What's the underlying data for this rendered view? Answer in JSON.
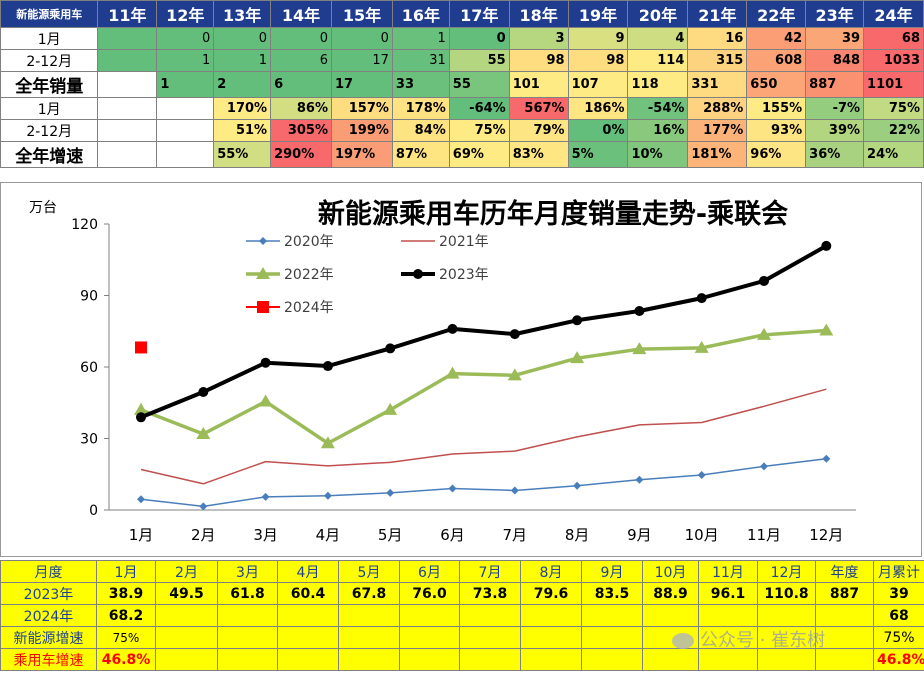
{
  "top_table": {
    "corner": "新能源乘用车",
    "years": [
      "11年",
      "12年",
      "13年",
      "14年",
      "15年",
      "16年",
      "17年",
      "18年",
      "19年",
      "20年",
      "21年",
      "22年",
      "23年",
      "24年"
    ],
    "rows": [
      {
        "label": "1月",
        "cells": [
          "",
          "0",
          "0",
          "0",
          "0",
          "1",
          "0",
          "3",
          "9",
          "4",
          "16",
          "42",
          "39",
          "68"
        ]
      },
      {
        "label": "2-12月",
        "cells": [
          "",
          "1",
          "1",
          "6",
          "17",
          "31",
          "55",
          "98",
          "98",
          "114",
          "315",
          "608",
          "848",
          "1033"
        ]
      },
      {
        "label": "全年销量",
        "cells": [
          "",
          "1",
          "2",
          "6",
          "17",
          "33",
          "55",
          "101",
          "107",
          "118",
          "331",
          "650",
          "887",
          "1101"
        ]
      },
      {
        "label": "1月",
        "cells": [
          "",
          "",
          "170%",
          "86%",
          "157%",
          "178%",
          "-64%",
          "567%",
          "186%",
          "-54%",
          "288%",
          "155%",
          "-7%",
          "75%"
        ]
      },
      {
        "label": "2-12月",
        "cells": [
          "",
          "",
          "51%",
          "305%",
          "199%",
          "84%",
          "75%",
          "79%",
          "0%",
          "16%",
          "177%",
          "93%",
          "39%",
          "22%"
        ]
      },
      {
        "label": "全年增速",
        "cells": [
          "",
          "",
          "55%",
          "290%",
          "197%",
          "87%",
          "69%",
          "83%",
          "5%",
          "10%",
          "181%",
          "96%",
          "36%",
          "24%"
        ]
      }
    ],
    "colors": [
      [
        "#63be7b",
        "#63be7b",
        "#63be7b",
        "#63be7b",
        "#63be7b",
        "#69c07c",
        "#63be7b",
        "#b6d680",
        "#d8e082",
        "#cfdd82",
        "#fedb80",
        "#fb9d75",
        "#fba677",
        "#f8696b"
      ],
      [
        "#63be7b",
        "#63be7b",
        "#63be7b",
        "#63be7b",
        "#63be7b",
        "#66bf7c",
        "#b5d680",
        "#fedd81",
        "#fedd81",
        "#ffeb84",
        "#fed380",
        "#fba276",
        "#f98470",
        "#f8696b"
      ],
      [
        "#ffffff",
        "#63be7b",
        "#63be7b",
        "#63be7b",
        "#63be7b",
        "#6bc17c",
        "#7ac57d",
        "#ffeb84",
        "#ffeb84",
        "#ffeb84",
        "#fedb81",
        "#fca576",
        "#fa9272",
        "#f8696b"
      ],
      [
        "#ffffff",
        "#ffffff",
        "#ffeb84",
        "#d3de82",
        "#fedd81",
        "#ffe383",
        "#63be7b",
        "#f8696b",
        "#ffe683",
        "#70c27c",
        "#fed280",
        "#feeb84",
        "#94cd7e",
        "#c2da81"
      ],
      [
        "#ffffff",
        "#ffffff",
        "#ffeb84",
        "#f8696b",
        "#fa9d75",
        "#fee382",
        "#ffeb84",
        "#fee583",
        "#63be7b",
        "#88c97e",
        "#fcb379",
        "#fee583",
        "#b2d580",
        "#9bcf7f"
      ],
      [
        "#ffffff",
        "#ffffff",
        "#d2de82",
        "#f8696b",
        "#fa9c75",
        "#fee582",
        "#ffeb84",
        "#fee683",
        "#6bc17c",
        "#80c77d",
        "#fcb479",
        "#fee583",
        "#a8d27f",
        "#b3d680"
      ]
    ]
  },
  "chart_data": {
    "type": "line",
    "title": "新能源乘用车历年月度销量走势-乘联会",
    "ylabel": "万台",
    "xlabel": "",
    "categories": [
      "1月",
      "2月",
      "3月",
      "4月",
      "5月",
      "6月",
      "7月",
      "8月",
      "9月",
      "10月",
      "11月",
      "12月"
    ],
    "ylim": [
      0,
      120
    ],
    "yticks": [
      0,
      30,
      60,
      90,
      120
    ],
    "grid": false,
    "legend": "top-left",
    "series": [
      {
        "name": "2020年",
        "color": "#4a7ebb",
        "marker": "diamond",
        "values": [
          4.5,
          1.5,
          5.5,
          6.0,
          7.2,
          9.0,
          8.2,
          10.2,
          12.7,
          14.7,
          18.3,
          21.5
        ]
      },
      {
        "name": "2021年",
        "color": "#c0504d",
        "marker": "none",
        "values": [
          17.0,
          11.0,
          20.3,
          18.5,
          20.0,
          23.5,
          24.7,
          30.7,
          35.7,
          36.7,
          43.5,
          50.7
        ]
      },
      {
        "name": "2022年",
        "color": "#9bbb59",
        "marker": "triangle",
        "values": [
          42.0,
          31.9,
          45.5,
          28.0,
          42.0,
          57.2,
          56.5,
          63.7,
          67.5,
          68.0,
          73.5,
          75.3
        ]
      },
      {
        "name": "2023年",
        "color": "#000000",
        "marker": "circle",
        "values": [
          38.9,
          49.5,
          61.8,
          60.4,
          67.8,
          76.0,
          73.8,
          79.6,
          83.5,
          88.9,
          96.1,
          110.8
        ]
      },
      {
        "name": "2024年",
        "color": "#ff0000",
        "marker": "square",
        "values": [
          68.2,
          null,
          null,
          null,
          null,
          null,
          null,
          null,
          null,
          null,
          null,
          null
        ]
      }
    ]
  },
  "bottom_table": {
    "header": [
      "月度",
      "1月",
      "2月",
      "3月",
      "4月",
      "5月",
      "6月",
      "7月",
      "8月",
      "9月",
      "10月",
      "11月",
      "12月",
      "年度",
      "月累计"
    ],
    "rows": [
      {
        "label": "2023年",
        "cells": [
          "38.9",
          "49.5",
          "61.8",
          "60.4",
          "67.8",
          "76.0",
          "73.8",
          "79.6",
          "83.5",
          "88.9",
          "96.1",
          "110.8",
          "887",
          "39"
        ]
      },
      {
        "label": "2024年",
        "cells": [
          "68.2",
          "",
          "",
          "",
          "",
          "",
          "",
          "",
          "",
          "",
          "",
          "",
          "",
          "68"
        ]
      },
      {
        "label": "新能源增速",
        "cells": [
          "75%",
          "",
          "",
          "",
          "",
          "",
          "",
          "",
          "",
          "",
          "",
          "",
          "",
          "75%"
        ]
      },
      {
        "label": "乘用车增速",
        "cells": [
          "46.8%",
          "",
          "",
          "",
          "",
          "",
          "",
          "",
          "",
          "",
          "",
          "",
          "",
          "46.8%"
        ]
      }
    ]
  },
  "watermark": "公众号 · 崔东树"
}
